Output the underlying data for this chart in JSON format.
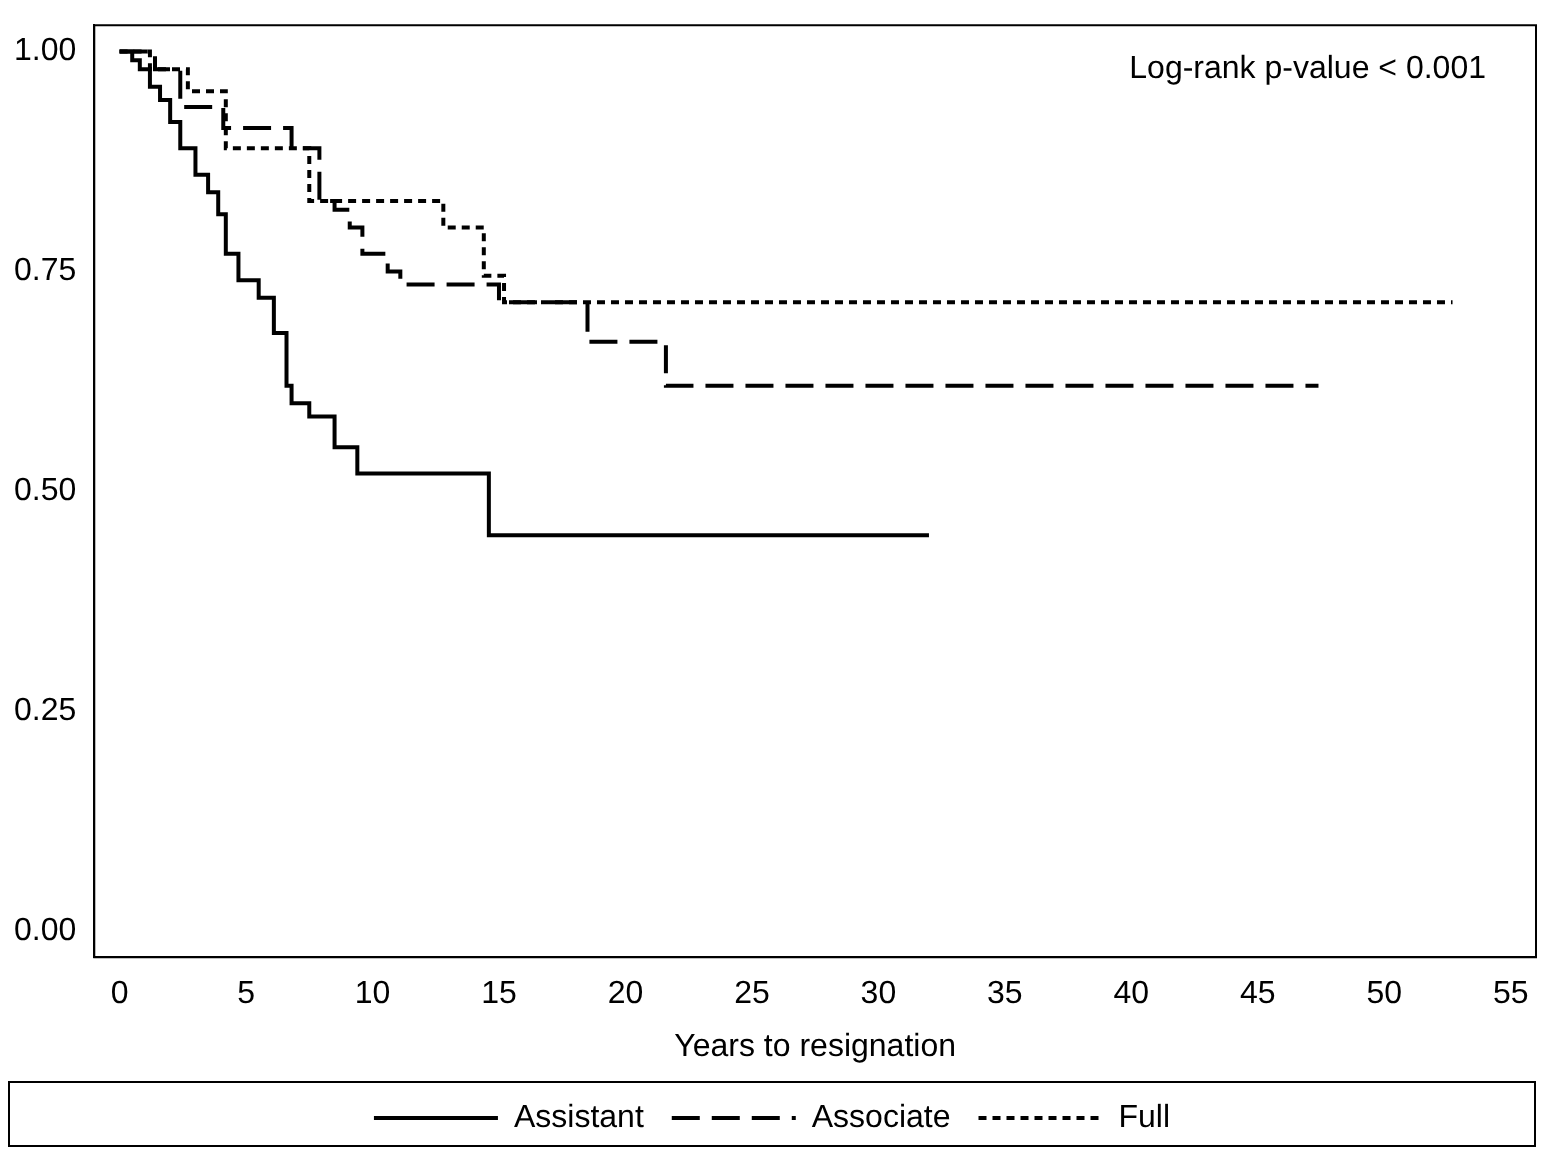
{
  "chart_data": {
    "type": "step",
    "xlabel": "Years to resignation",
    "annotations": [
      "Log-rank p-value < 0.001"
    ],
    "xlim": [
      -1,
      56
    ],
    "xticks": [
      0,
      5,
      10,
      15,
      20,
      25,
      30,
      35,
      40,
      45,
      50,
      55
    ],
    "ylim": [
      -0.03,
      1.03
    ],
    "yticks": [
      {
        "value": 0,
        "label": "0.00"
      },
      {
        "value": 0.25,
        "label": "0.25"
      },
      {
        "value": 0.5,
        "label": "0.50"
      },
      {
        "value": 0.75,
        "label": "0.75"
      },
      {
        "value": 1,
        "label": "1.00"
      }
    ],
    "grid": false,
    "legend": "bottom",
    "marker": "none",
    "series": [
      {
        "name": "Assistant",
        "color": "#000000",
        "line_style": "solid",
        "x": [
          0,
          0.5,
          0.8,
          1.2,
          1.6,
          2.0,
          2.4,
          3.0,
          3.5,
          3.9,
          4.2,
          4.7,
          5.5,
          6.1,
          6.6,
          6.8,
          7.5,
          8.5,
          9.4,
          14.6,
          32
        ],
        "values": [
          1,
          0.99,
          0.98,
          0.96,
          0.945,
          0.92,
          0.89,
          0.86,
          0.84,
          0.815,
          0.77,
          0.74,
          0.72,
          0.68,
          0.62,
          0.6,
          0.585,
          0.55,
          0.52,
          0.45,
          0.45
        ]
      },
      {
        "name": "Associate",
        "color": "#000000",
        "line_style": "dashed",
        "x": [
          0,
          1.4,
          2.4,
          4.1,
          6.8,
          7.9,
          8.5,
          9.1,
          9.6,
          10.6,
          11.1,
          15.0,
          18.5,
          21.6,
          47.4
        ],
        "values": [
          1,
          0.98,
          0.937,
          0.913,
          0.89,
          0.83,
          0.82,
          0.8,
          0.77,
          0.75,
          0.735,
          0.715,
          0.67,
          0.62,
          0.62
        ]
      },
      {
        "name": "Full",
        "color": "#000000",
        "line_style": "dotted",
        "x": [
          0,
          1.2,
          2.7,
          4.2,
          7.5,
          12.8,
          14.4,
          15.2,
          52.7
        ],
        "values": [
          1,
          0.98,
          0.955,
          0.89,
          0.83,
          0.8,
          0.745,
          0.715,
          0.715
        ]
      }
    ]
  }
}
